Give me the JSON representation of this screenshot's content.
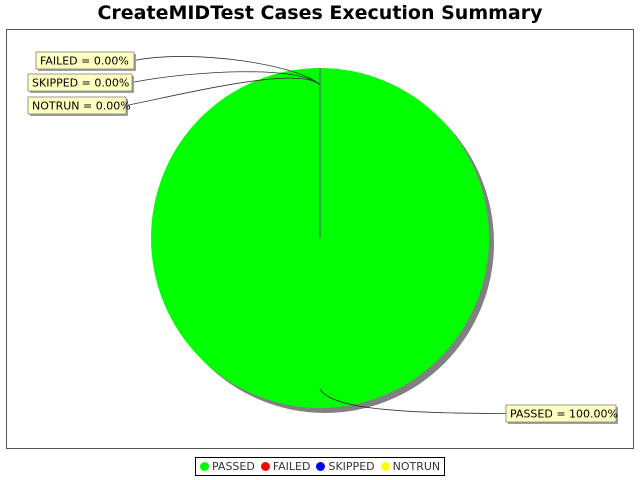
{
  "chart_data": {
    "type": "pie",
    "title": "CreateMIDTest Cases Execution Summary",
    "slices": [
      {
        "name": "PASSED",
        "value": 100.0,
        "label": "PASSED = 100.00%",
        "color": "#00ff00"
      },
      {
        "name": "FAILED",
        "value": 0.0,
        "label": "FAILED = 0.00%",
        "color": "#ff0000"
      },
      {
        "name": "SKIPPED",
        "value": 0.0,
        "label": "SKIPPED = 0.00%",
        "color": "#0000ff"
      },
      {
        "name": "NOTRUN",
        "value": 0.0,
        "label": "NOTRUN = 0.00%",
        "color": "#ffff00"
      }
    ],
    "legend": {
      "position": "bottom",
      "entries": [
        "PASSED",
        "FAILED",
        "SKIPPED",
        "NOTRUN"
      ]
    }
  }
}
